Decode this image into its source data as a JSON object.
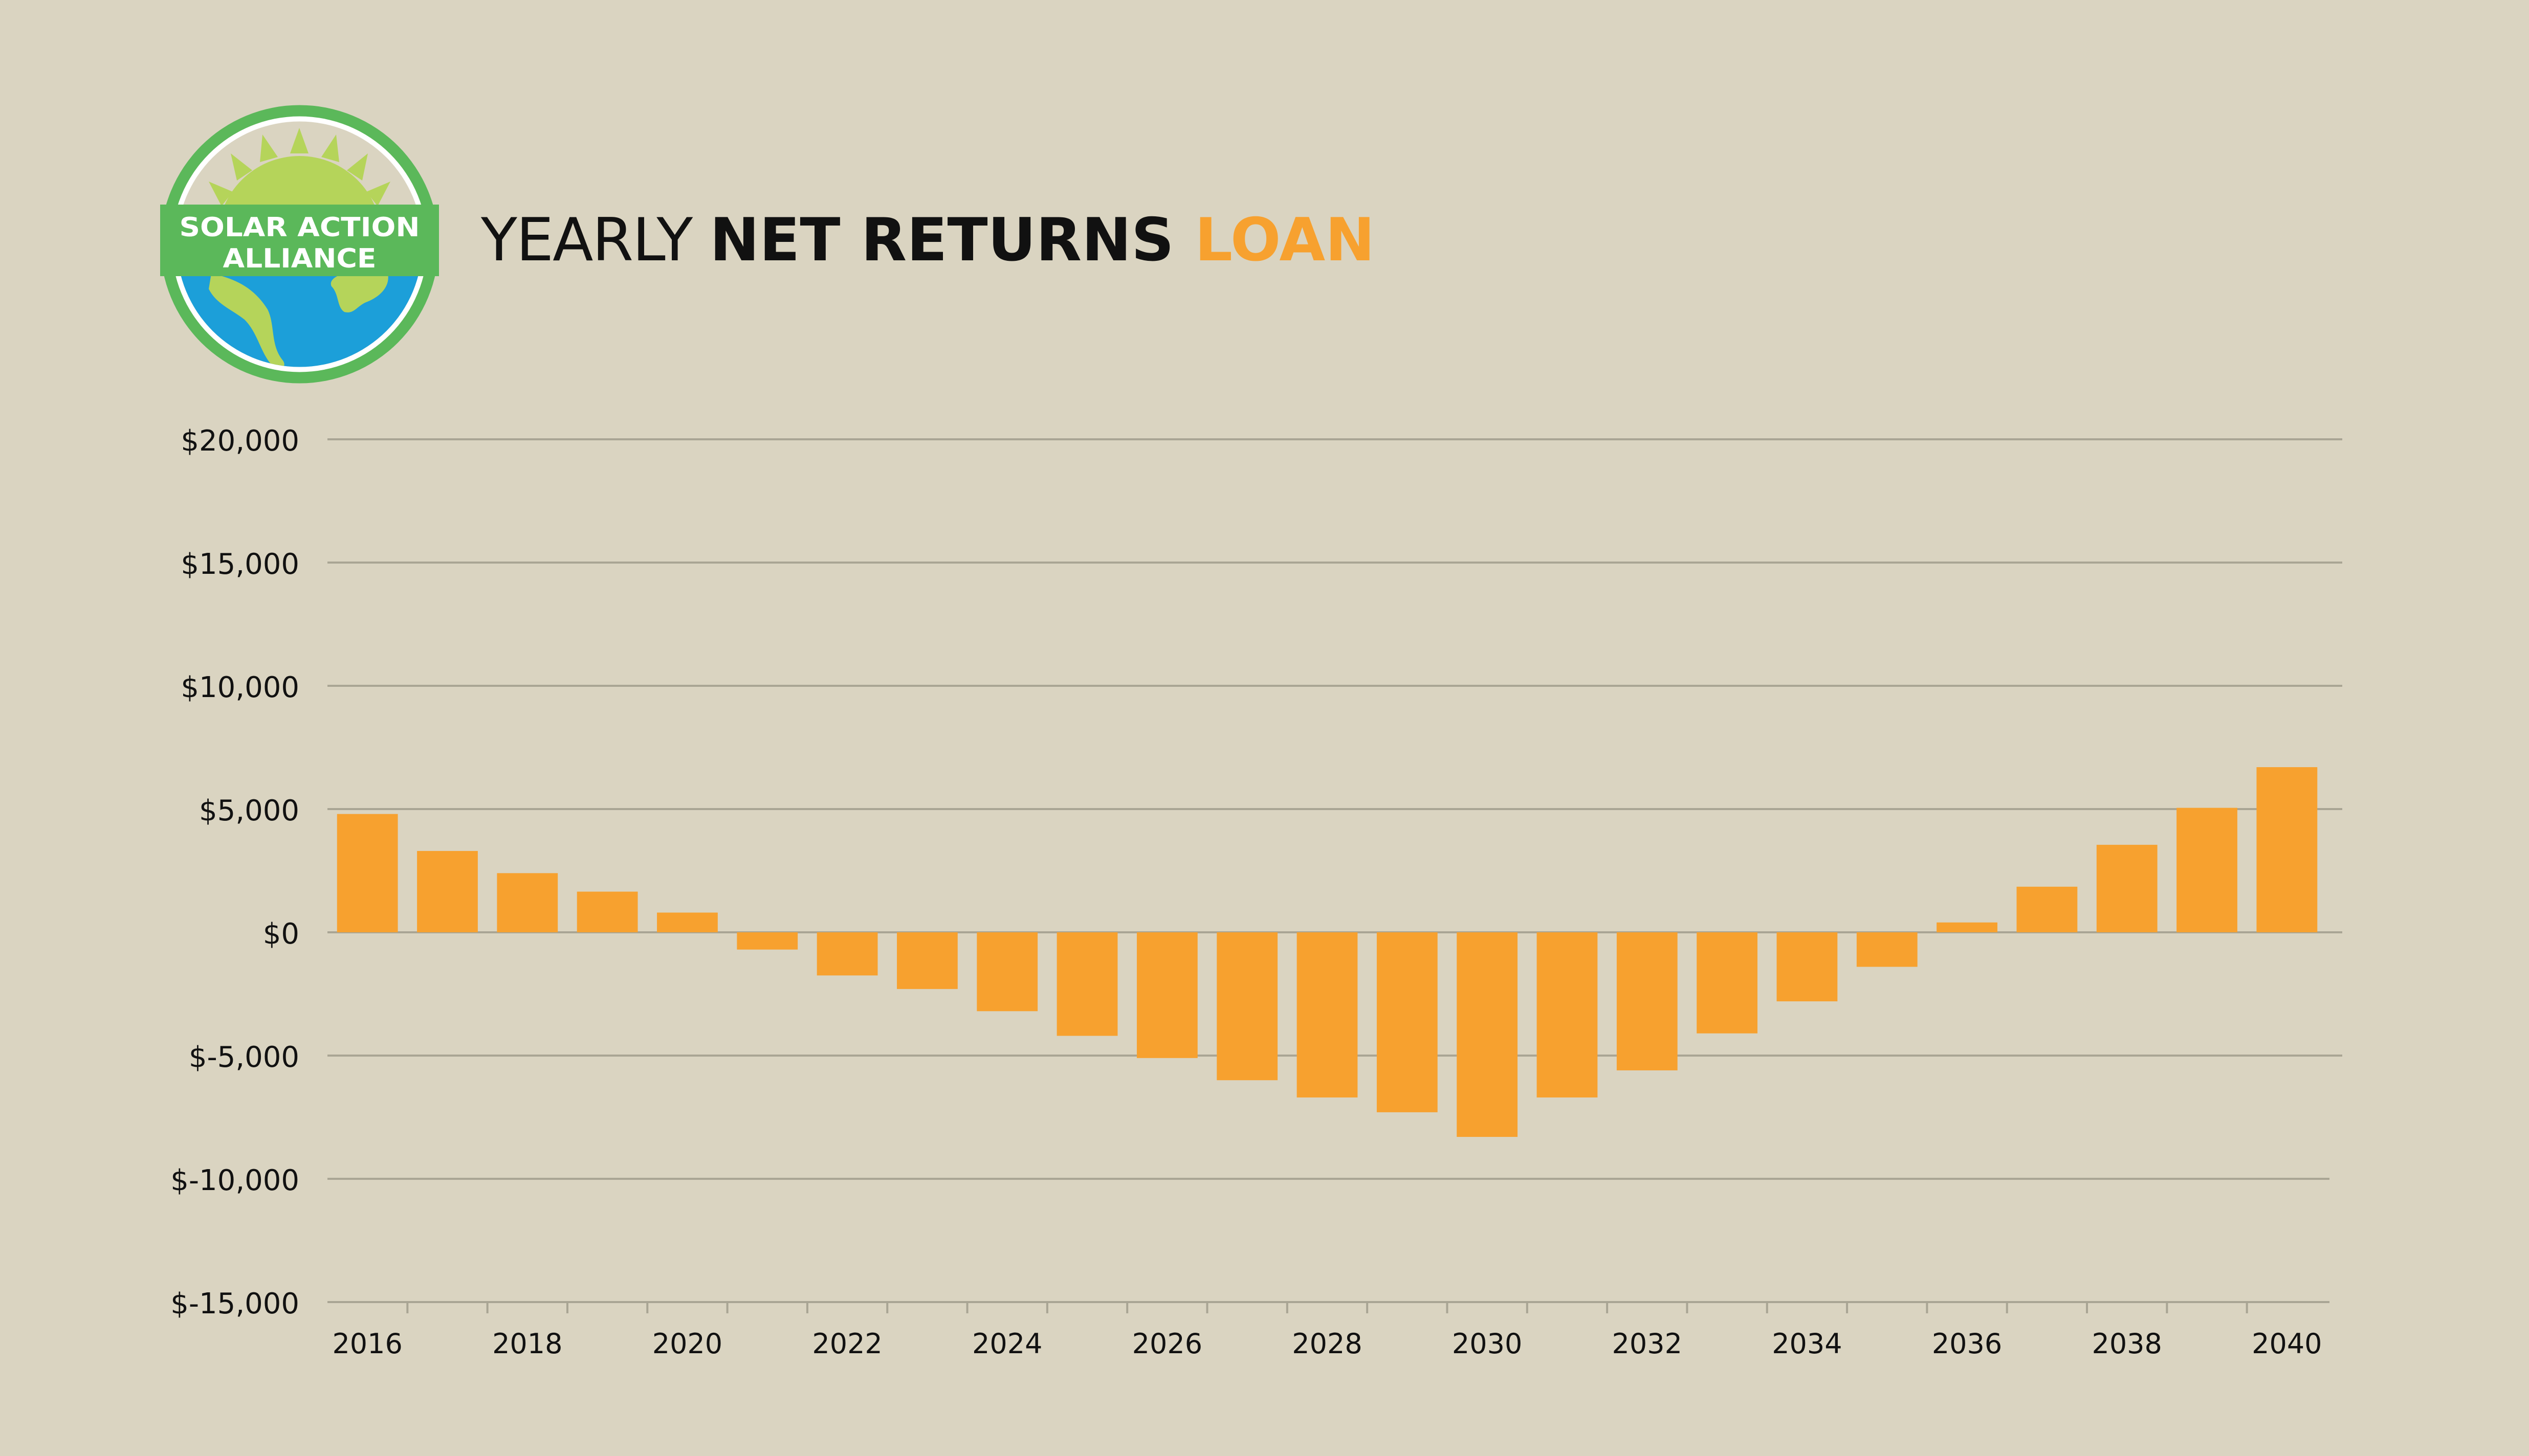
{
  "title": {
    "part1": "YEARLY ",
    "part2": "NET RETURNS",
    "part3": " LOAN"
  },
  "logo": {
    "line1": "SOLAR ACTION",
    "line2": "ALLIANCE"
  },
  "colors": {
    "background": "#dad4c1",
    "bar": "#f7a12f",
    "grid": "#a9a594",
    "accent": "#f7a12f"
  },
  "chart_data": {
    "type": "bar",
    "title": "YEARLY NET RETURNS LOAN",
    "xlabel": "",
    "ylabel": "",
    "ylim": [
      -15000,
      20000
    ],
    "yticks": [
      20000,
      15000,
      10000,
      5000,
      0,
      -5000,
      -10000,
      -15000
    ],
    "ytick_labels": [
      "$20,000",
      "$15,000",
      "$10,000",
      "$5,000",
      "$0",
      "$-5,000",
      "$-10,000",
      "$-15,000"
    ],
    "categories": [
      "2016",
      "2017",
      "2018",
      "2019",
      "2020",
      "2021",
      "2022",
      "2023",
      "2024",
      "2025",
      "2026",
      "2027",
      "2028",
      "2029",
      "2030",
      "2031",
      "2032",
      "2033",
      "2034",
      "2035",
      "2036",
      "2037",
      "2038",
      "2039",
      "2040"
    ],
    "xtick_labels": [
      "2016",
      "",
      "2018",
      "",
      "2020",
      "",
      "2022",
      "",
      "2024",
      "",
      "2026",
      "",
      "2028",
      "",
      "2030",
      "",
      "2032",
      "",
      "2034",
      "",
      "2036",
      "",
      "2038",
      "",
      "2040"
    ],
    "values": [
      4800,
      3300,
      2400,
      1650,
      800,
      -700,
      -1750,
      -2300,
      -3200,
      -4200,
      -5100,
      -6000,
      -6700,
      -7300,
      -8300,
      -6700,
      -5600,
      -4100,
      -2800,
      -1400,
      400,
      1850,
      3550,
      5050,
      6700
    ],
    "grid": true,
    "legend": "none"
  }
}
